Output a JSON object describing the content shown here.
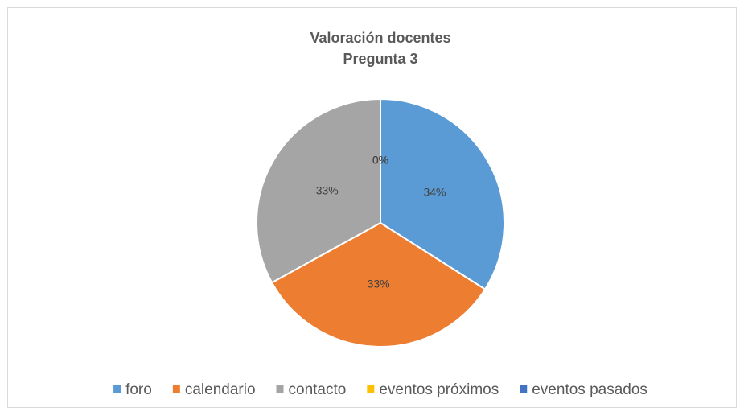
{
  "chart_data": {
    "type": "pie",
    "title": "Valoración docentes",
    "subtitle": "Pregunta 3",
    "categories": [
      "foro",
      "calendario",
      "contacto",
      "eventos próximos",
      "eventos pasados"
    ],
    "values": [
      34,
      33,
      33,
      0,
      0
    ],
    "value_labels": [
      "34%",
      "33%",
      "33%",
      "0%",
      "0%"
    ],
    "colors": [
      "#5b9bd5",
      "#ed7d31",
      "#a5a5a5",
      "#ffc000",
      "#4472c4"
    ],
    "legend": "bottom"
  }
}
